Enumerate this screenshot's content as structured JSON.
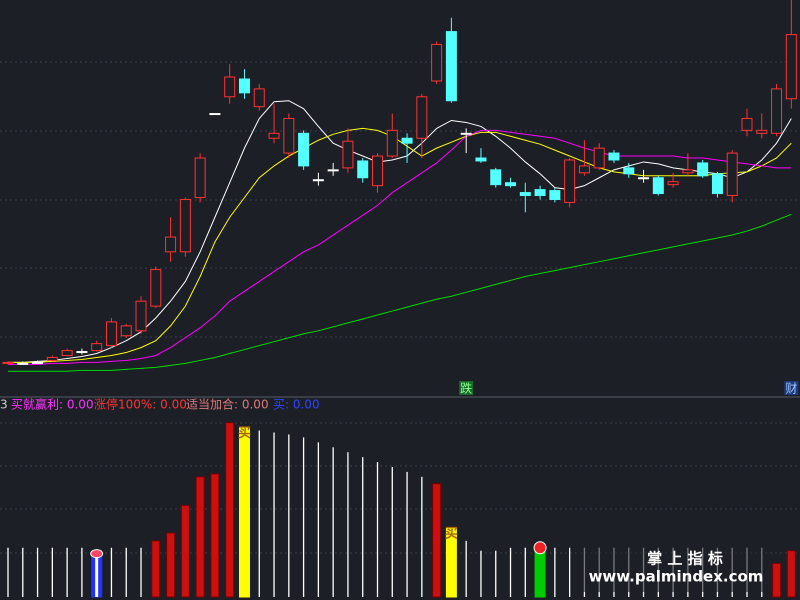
{
  "chart_data": {
    "type": "candlestick",
    "ylim": [
      0,
      400
    ],
    "candles": {
      "open": [
        32,
        32,
        33,
        35,
        40,
        44,
        45,
        50,
        60,
        65,
        90,
        145,
        145,
        200,
        285,
        302,
        320,
        292,
        260,
        245,
        265,
        218,
        228,
        230,
        237,
        212,
        242,
        260,
        260,
        318,
        368,
        265,
        240,
        228,
        215,
        205,
        208,
        207,
        195,
        225,
        230,
        245,
        230,
        220,
        220,
        213,
        225,
        235,
        224,
        202,
        268,
        265,
        265,
        300
      ],
      "high": [
        34,
        34,
        35,
        40,
        47,
        47,
        55,
        78,
        72,
        100,
        130,
        180,
        200,
        245,
        285,
        335,
        330,
        315,
        295,
        285,
        268,
        225,
        235,
        270,
        240,
        245,
        285,
        265,
        305,
        358,
        382,
        270,
        250,
        230,
        220,
        215,
        212,
        210,
        240,
        258,
        255,
        248,
        235,
        228,
        222,
        225,
        245,
        238,
        226,
        248,
        290,
        285,
        315,
        400
      ],
      "low": [
        31,
        31,
        32,
        34,
        39,
        41,
        44,
        48,
        58,
        62,
        88,
        135,
        140,
        195,
        285,
        295,
        300,
        288,
        255,
        240,
        228,
        212,
        222,
        225,
        215,
        205,
        240,
        235,
        240,
        315,
        296,
        245,
        235,
        210,
        210,
        185,
        198,
        195,
        190,
        222,
        228,
        235,
        220,
        215,
        202,
        210,
        222,
        220,
        200,
        195,
        262,
        260,
        262,
        290
      ],
      "close": [
        33,
        32,
        33,
        38,
        45,
        44,
        52,
        74,
        70,
        95,
        127,
        160,
        198,
        240,
        285,
        322,
        306,
        310,
        265,
        280,
        232,
        218,
        228,
        257,
        220,
        242,
        268,
        255,
        302,
        355,
        298,
        265,
        237,
        213,
        212,
        202,
        202,
        198,
        238,
        232,
        250,
        238,
        224,
        220,
        204,
        216,
        228,
        222,
        204,
        245,
        280,
        268,
        310,
        365
      ],
      "up_color": "#ff3232",
      "down_color": "#54ffff",
      "flat_color": "#ffffff"
    },
    "series": [
      {
        "color": "#ffffff",
        "values": [
          33,
          33,
          34,
          35,
          37,
          39,
          42,
          48,
          55,
          64,
          78,
          95,
          115,
          145,
          180,
          215,
          250,
          280,
          297,
          298,
          290,
          272,
          255,
          248,
          242,
          236,
          238,
          242,
          255,
          270,
          278,
          276,
          272,
          262,
          250,
          236,
          224,
          210,
          208,
          212,
          220,
          228,
          232,
          236,
          234,
          230,
          228,
          226,
          224,
          220,
          226,
          238,
          255,
          280
        ]
      },
      {
        "color": "#ffff00",
        "values": [
          33,
          33,
          33,
          34,
          35,
          36,
          38,
          40,
          43,
          48,
          55,
          70,
          90,
          120,
          155,
          180,
          200,
          220,
          232,
          242,
          250,
          258,
          264,
          268,
          270,
          268,
          262,
          252,
          242,
          250,
          256,
          262,
          266,
          266,
          262,
          258,
          254,
          248,
          242,
          236,
          230,
          226,
          224,
          222,
          222,
          222,
          222,
          222,
          224,
          225,
          226,
          232,
          240,
          255
        ]
      },
      {
        "color": "#ff00ff",
        "values": [
          31,
          31,
          31,
          32,
          32,
          33,
          33,
          34,
          35,
          37,
          40,
          48,
          58,
          68,
          80,
          95,
          105,
          115,
          125,
          135,
          145,
          152,
          162,
          172,
          182,
          192,
          205,
          215,
          225,
          235,
          248,
          262,
          268,
          268,
          266,
          264,
          262,
          260,
          255,
          250,
          246,
          242,
          242,
          242,
          242,
          242,
          240,
          240,
          238,
          236,
          234,
          232,
          230,
          230
        ]
      },
      {
        "color": "#00dd00",
        "values": [
          24,
          24,
          24,
          24,
          24,
          25,
          25,
          25,
          26,
          27,
          28,
          30,
          32,
          35,
          38,
          42,
          46,
          50,
          54,
          58,
          62,
          65,
          69,
          73,
          77,
          81,
          85,
          89,
          93,
          97,
          100,
          104,
          108,
          112,
          116,
          120,
          123,
          126,
          129,
          132,
          135,
          138,
          141,
          144,
          147,
          150,
          153,
          156,
          159,
          162,
          166,
          171,
          177,
          183
        ]
      }
    ],
    "signal_labels": [
      null,
      null,
      null,
      null,
      null,
      null,
      null,
      null,
      null,
      null,
      null,
      null,
      null,
      null,
      null,
      null,
      null,
      null,
      null,
      null,
      null,
      null,
      null,
      null,
      null,
      null,
      null,
      null,
      null,
      null,
      null,
      "跌",
      null,
      null,
      null,
      null,
      null,
      null,
      null,
      null,
      null,
      null,
      null,
      null,
      null,
      null,
      null,
      null,
      null,
      null,
      null,
      null,
      null,
      "财"
    ],
    "indicator": {
      "labels": [
        "3",
        "买就赢利: 0.00",
        "涨停100%: 0.00",
        "适当加合: 0.00",
        "买: 0.00"
      ],
      "ylim": [
        0,
        200
      ],
      "values": [
        50,
        50,
        50,
        50,
        50,
        50,
        45,
        50,
        50,
        50,
        57,
        65,
        93,
        122,
        125,
        177,
        172,
        169,
        167,
        165,
        162,
        157,
        152,
        147,
        142,
        137,
        132,
        127,
        122,
        115,
        70,
        57,
        47,
        47,
        50,
        50,
        50,
        50,
        50,
        50,
        50,
        50,
        50,
        50,
        50,
        50,
        50,
        50,
        50,
        50,
        50,
        50,
        34,
        47
      ],
      "colors": [
        "#ffffff",
        "#ffffff",
        "#ffffff",
        "#ffffff",
        "#ffffff",
        "#ffffff",
        "#2233ff",
        "#ffffff",
        "#ffffff",
        "#ffffff",
        "#cc1010",
        "#cc1010",
        "#cc1010",
        "#cc1010",
        "#cc1010",
        "#cc1010",
        "#ffff00",
        "#ffffff",
        "#ffffff",
        "#ffffff",
        "#ffffff",
        "#ffffff",
        "#ffffff",
        "#ffffff",
        "#ffffff",
        "#ffffff",
        "#ffffff",
        "#ffffff",
        "#ffffff",
        "#cc1010",
        "#ffff00",
        "#ffffff",
        "#ffffff",
        "#ffffff",
        "#ffffff",
        "#ffffff",
        "#00cc00",
        "#ffffff",
        "#ffffff",
        "#ffffff",
        "#ffffff",
        "#ffffff",
        "#ffffff",
        "#ffffff",
        "#ffffff",
        "#ffffff",
        "#ffffff",
        "#ffffff",
        "#ffffff",
        "#ffffff",
        "#ffffff",
        "#ffffff",
        "#cc1010",
        "#cc1010"
      ],
      "bar_labels": [
        null,
        null,
        null,
        null,
        null,
        null,
        null,
        null,
        null,
        null,
        null,
        null,
        null,
        null,
        null,
        null,
        "买",
        null,
        null,
        null,
        null,
        null,
        null,
        null,
        null,
        null,
        null,
        null,
        null,
        null,
        "买",
        null,
        null,
        null,
        null,
        null,
        null,
        null,
        null,
        null,
        null,
        null,
        null,
        null,
        null,
        null,
        null,
        null,
        null,
        null,
        null,
        null,
        null,
        null
      ]
    }
  },
  "watermark": {
    "title": "掌 上 指 标",
    "url": "www.palmindex.com"
  }
}
